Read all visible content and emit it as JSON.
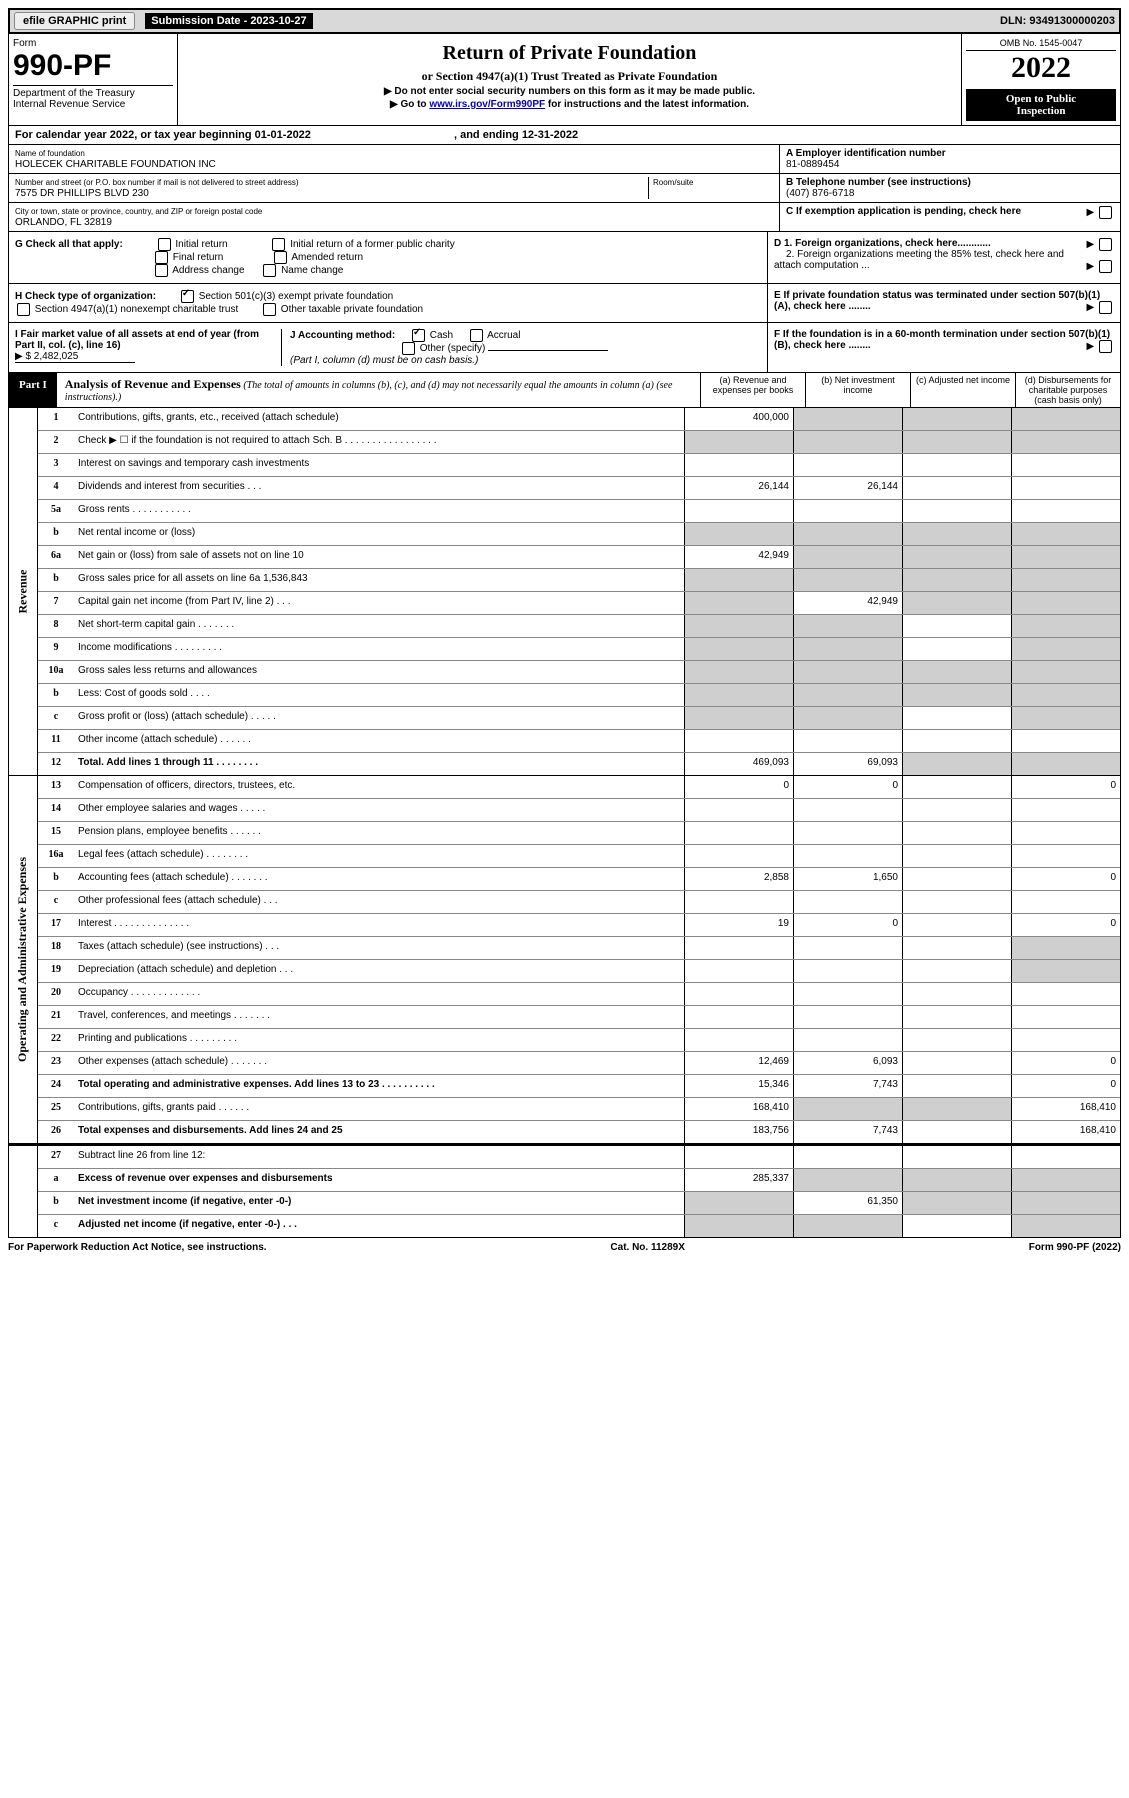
{
  "topbar": {
    "efile": "efile GRAPHIC print",
    "sub_label": "Submission Date - 2023-10-27",
    "dln": "DLN: 93491300000203"
  },
  "header": {
    "form_label": "Form",
    "form_num": "990-PF",
    "dept": "Department of the Treasury",
    "irs": "Internal Revenue Service",
    "title": "Return of Private Foundation",
    "subtitle": "or Section 4947(a)(1) Trust Treated as Private Foundation",
    "line1": "▶ Do not enter social security numbers on this form as it may be made public.",
    "line2_pre": "▶ Go to ",
    "line2_link": "www.irs.gov/Form990PF",
    "line2_post": " for instructions and the latest information.",
    "omb": "OMB No. 1545-0047",
    "year": "2022",
    "inspect1": "Open to Public",
    "inspect2": "Inspection"
  },
  "calyear": "For calendar year 2022, or tax year beginning 01-01-2022",
  "calyear_end": ", and ending 12-31-2022",
  "name": {
    "label": "Name of foundation",
    "value": "HOLECEK CHARITABLE FOUNDATION INC"
  },
  "addr": {
    "label": "Number and street (or P.O. box number if mail is not delivered to street address)",
    "value": "7575 DR PHILLIPS BLVD 230",
    "room": "Room/suite"
  },
  "city": {
    "label": "City or town, state or province, country, and ZIP or foreign postal code",
    "value": "ORLANDO, FL  32819"
  },
  "a": {
    "label": "A Employer identification number",
    "value": "81-0889454"
  },
  "b": {
    "label": "B Telephone number (see instructions)",
    "value": "(407) 876-6718"
  },
  "c": "C If exemption application is pending, check here",
  "d1": "D 1. Foreign organizations, check here............",
  "d2": "2. Foreign organizations meeting the 85% test, check here and attach computation ...",
  "e": "E  If private foundation status was terminated under section 507(b)(1)(A), check here ........",
  "f": "F  If the foundation is in a 60-month termination under section 507(b)(1)(B), check here ........",
  "g": {
    "label": "G Check all that apply:",
    "o1": "Initial return",
    "o2": "Final return",
    "o3": "Address change",
    "o4": "Initial return of a former public charity",
    "o5": "Amended return",
    "o6": "Name change"
  },
  "h": {
    "label": "H Check type of organization:",
    "o1": "Section 501(c)(3) exempt private foundation",
    "o2": "Section 4947(a)(1) nonexempt charitable trust",
    "o3": "Other taxable private foundation"
  },
  "i": {
    "label": "I Fair market value of all assets at end of year (from Part II, col. (c), line 16)",
    "value": "▶ $  2,482,025"
  },
  "j": {
    "label": "J Accounting method:",
    "cash": "Cash",
    "accrual": "Accrual",
    "other": "Other (specify)",
    "note": "(Part I, column (d) must be on cash basis.)"
  },
  "part1": {
    "label": "Part I",
    "title": "Analysis of Revenue and Expenses",
    "note": "(The total of amounts in columns (b), (c), and (d) may not necessarily equal the amounts in column (a) (see instructions).)",
    "ca": "(a)   Revenue and expenses per books",
    "cb": "(b)   Net investment income",
    "cc": "(c)   Adjusted net income",
    "cd": "(d)  Disbursements for charitable purposes (cash basis only)"
  },
  "side_rev": "Revenue",
  "side_exp": "Operating and Administrative Expenses",
  "rows": {
    "r1": {
      "n": "1",
      "d": "Contributions, gifts, grants, etc., received (attach schedule)",
      "a": "400,000",
      "g": [
        "",
        "b",
        "c",
        "d"
      ]
    },
    "r2": {
      "n": "2",
      "d": "Check ▶ ☐ if the foundation is not required to attach Sch. B   .   .   .   .   .   .   .   .   .   .   .   .   .   .   .   .   .",
      "g": [
        "a",
        "b",
        "c",
        "d"
      ]
    },
    "r3": {
      "n": "3",
      "d": "Interest on savings and temporary cash investments"
    },
    "r4": {
      "n": "4",
      "d": "Dividends and interest from securities     .    .    .",
      "a": "26,144",
      "b": "26,144"
    },
    "r5a": {
      "n": "5a",
      "d": "Gross rents     .    .    .    .    .    .    .    .    .    .    ."
    },
    "r5b": {
      "n": "b",
      "d": "Net rental income or (loss)",
      "g": [
        "a",
        "b",
        "c",
        "d"
      ]
    },
    "r6a": {
      "n": "6a",
      "d": "Net gain or (loss) from sale of assets not on line 10",
      "a": "42,949",
      "g": [
        "",
        "b",
        "c",
        "d"
      ]
    },
    "r6b": {
      "n": "b",
      "d": "Gross sales price for all assets on line 6a            1,536,843",
      "g": [
        "a",
        "b",
        "c",
        "d"
      ]
    },
    "r7": {
      "n": "7",
      "d": "Capital gain net income (from Part IV, line 2)    .   .   .",
      "b": "42,949",
      "g": [
        "a",
        "",
        "c",
        "d"
      ]
    },
    "r8": {
      "n": "8",
      "d": "Net short-term capital gain   .    .    .    .    .    .    .",
      "g": [
        "a",
        "b",
        "",
        "d"
      ]
    },
    "r9": {
      "n": "9",
      "d": "Income modifications  .    .    .    .    .    .    .    .    .",
      "g": [
        "a",
        "b",
        "",
        "d"
      ]
    },
    "r10a": {
      "n": "10a",
      "d": "Gross sales less returns and allowances",
      "g": [
        "a",
        "b",
        "c",
        "d"
      ]
    },
    "r10b": {
      "n": "b",
      "d": "Less: Cost of goods sold      .    .    .    .",
      "g": [
        "a",
        "b",
        "c",
        "d"
      ]
    },
    "r10c": {
      "n": "c",
      "d": "Gross profit or (loss) (attach schedule)      .    .    .    .    .",
      "g": [
        "a",
        "b",
        "",
        "d"
      ]
    },
    "r11": {
      "n": "11",
      "d": "Other income (attach schedule)    .    .    .    .    .    ."
    },
    "r12": {
      "n": "12",
      "d": "Total. Add lines 1 through 11    .    .    .    .    .    .    .    .",
      "a": "469,093",
      "b": "69,093",
      "g": [
        "",
        "",
        "c",
        "d"
      ],
      "bold": true
    },
    "r13": {
      "n": "13",
      "d": "Compensation of officers, directors, trustees, etc.",
      "a": "0",
      "b": "0",
      "dd": "0"
    },
    "r14": {
      "n": "14",
      "d": "Other employee salaries and wages     .    .    .    .    ."
    },
    "r15": {
      "n": "15",
      "d": "Pension plans, employee benefits  .    .    .    .    .    ."
    },
    "r16a": {
      "n": "16a",
      "d": "Legal fees (attach schedule) .    .    .    .    .    .    .    ."
    },
    "r16b": {
      "n": "b",
      "d": "Accounting fees (attach schedule) .    .    .    .    .    .    .",
      "a": "2,858",
      "b": "1,650",
      "dd": "0"
    },
    "r16c": {
      "n": "c",
      "d": "Other professional fees (attach schedule)     .    .    ."
    },
    "r17": {
      "n": "17",
      "d": "Interest .    .    .    .    .    .    .    .    .    .    .    .    .    .",
      "a": "19",
      "b": "0",
      "dd": "0"
    },
    "r18": {
      "n": "18",
      "d": "Taxes (attach schedule) (see instructions)      .    .    .",
      "g": [
        "",
        "",
        "",
        "d"
      ]
    },
    "r19": {
      "n": "19",
      "d": "Depreciation (attach schedule) and depletion    .    .    .",
      "g": [
        "",
        "",
        "",
        "d"
      ]
    },
    "r20": {
      "n": "20",
      "d": "Occupancy .    .    .    .    .    .    .    .    .    .    .    .    ."
    },
    "r21": {
      "n": "21",
      "d": "Travel, conferences, and meetings .    .    .    .    .    .    ."
    },
    "r22": {
      "n": "22",
      "d": "Printing and publications .    .    .    .    .    .    .    .    ."
    },
    "r23": {
      "n": "23",
      "d": "Other expenses (attach schedule) .    .    .    .    .    .    .",
      "a": "12,469",
      "b": "6,093",
      "dd": "0"
    },
    "r24": {
      "n": "24",
      "d": "Total operating and administrative expenses. Add lines 13 to 23    .    .    .    .    .    .    .    .    .    .",
      "a": "15,346",
      "b": "7,743",
      "dd": "0",
      "bold": true
    },
    "r25": {
      "n": "25",
      "d": "Contributions, gifts, grants paid     .    .    .    .    .    .",
      "a": "168,410",
      "dd": "168,410",
      "g": [
        "",
        "b",
        "c",
        ""
      ]
    },
    "r26": {
      "n": "26",
      "d": "Total expenses and disbursements. Add lines 24 and 25",
      "a": "183,756",
      "b": "7,743",
      "dd": "168,410",
      "bold": true
    },
    "r27": {
      "n": "27",
      "d": "Subtract line 26 from line 12:"
    },
    "r27a": {
      "n": "a",
      "d": "Excess of revenue over expenses and disbursements",
      "a": "285,337",
      "g": [
        "",
        "b",
        "c",
        "d"
      ],
      "bold": true
    },
    "r27b": {
      "n": "b",
      "d": "Net investment income (if negative, enter -0-)",
      "b": "61,350",
      "g": [
        "a",
        "",
        "c",
        "d"
      ],
      "bold": true
    },
    "r27c": {
      "n": "c",
      "d": "Adjusted net income (if negative, enter -0-)    .    .    .",
      "g": [
        "a",
        "b",
        "",
        "d"
      ],
      "bold": true
    }
  },
  "footer": {
    "left": "For Paperwork Reduction Act Notice, see instructions.",
    "mid": "Cat. No. 11289X",
    "right": "Form 990-PF (2022)"
  }
}
